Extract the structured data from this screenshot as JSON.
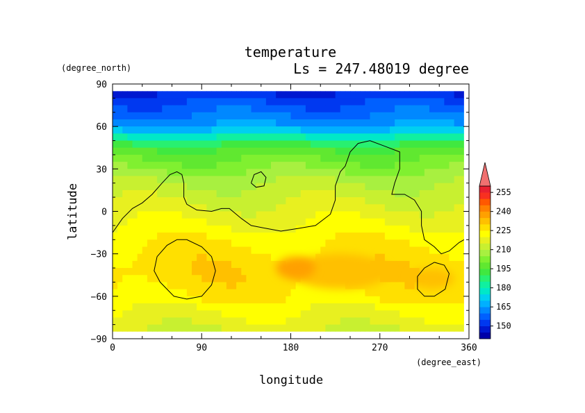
{
  "chart_data": {
    "type": "heatmap",
    "title": "temperature",
    "subtitle": "Ls = 247.48019 degree",
    "xlabel": "longitude",
    "ylabel": "latitude",
    "x_units": "(degree_east)",
    "y_units": "(degree_north)",
    "xlim": [
      0,
      360
    ],
    "ylim": [
      -90,
      90
    ],
    "data_extent": {
      "lon": [
        0,
        355
      ],
      "lat": [
        -85,
        85
      ]
    },
    "x_ticks": [
      0,
      90,
      180,
      270,
      360
    ],
    "y_ticks": [
      90,
      60,
      30,
      0,
      -30,
      -60,
      -90
    ],
    "x_tick_labels": [
      "0",
      "90",
      "180",
      "270",
      "360"
    ],
    "y_tick_labels": [
      "90",
      "60",
      "30",
      "0",
      "−30",
      "−60",
      "−90"
    ],
    "colorbar": {
      "levels": [
        140,
        145,
        150,
        155,
        160,
        165,
        170,
        175,
        180,
        185,
        190,
        195,
        200,
        205,
        210,
        215,
        220,
        225,
        230,
        235,
        240,
        245,
        250,
        255,
        260
      ],
      "colors": [
        "#0000a8",
        "#0018d0",
        "#0038f0",
        "#0060ff",
        "#0088ff",
        "#00b0ff",
        "#00d0f0",
        "#00e8c8",
        "#10f0a0",
        "#28f070",
        "#40e840",
        "#60e830",
        "#80f030",
        "#a8f040",
        "#c8f030",
        "#e8f020",
        "#ffff00",
        "#ffe000",
        "#ffc000",
        "#ffa000",
        "#ff8000",
        "#ff5800",
        "#f83020",
        "#e82030"
      ],
      "labels": [
        {
          "value": 150,
          "text": "150"
        },
        {
          "value": 165,
          "text": "165"
        },
        {
          "value": 180,
          "text": "180"
        },
        {
          "value": 195,
          "text": "195"
        },
        {
          "value": 210,
          "text": "210"
        },
        {
          "value": 225,
          "text": "225"
        },
        {
          "value": 240,
          "text": "240"
        },
        {
          "value": 255,
          "text": "255"
        }
      ],
      "extend": "max"
    },
    "warm_zones": [
      {
        "lon": [
          180,
          280
        ],
        "lat": [
          -55,
          -30
        ],
        "level": 232
      },
      {
        "lon": [
          165,
          205
        ],
        "lat": [
          -48,
          -32
        ],
        "level": 238
      },
      {
        "lon": [
          300,
          345
        ],
        "lat": [
          -55,
          -40
        ],
        "level": 233
      }
    ],
    "coastline": [
      [
        [
          0,
          -15
        ],
        [
          10,
          -5
        ],
        [
          20,
          2
        ],
        [
          30,
          6
        ],
        [
          40,
          12
        ],
        [
          50,
          20
        ],
        [
          58,
          26
        ],
        [
          65,
          28
        ],
        [
          70,
          26
        ],
        [
          72,
          20
        ],
        [
          72,
          10
        ],
        [
          75,
          5
        ],
        [
          85,
          1
        ],
        [
          100,
          0
        ],
        [
          110,
          2
        ],
        [
          118,
          2
        ],
        [
          130,
          -5
        ],
        [
          140,
          -10
        ],
        [
          155,
          -12
        ],
        [
          170,
          -14
        ],
        [
          188,
          -12
        ],
        [
          205,
          -10
        ],
        [
          220,
          -2
        ],
        [
          225,
          8
        ],
        [
          225,
          18
        ],
        [
          230,
          28
        ],
        [
          235,
          32
        ],
        [
          240,
          42
        ],
        [
          248,
          48
        ],
        [
          260,
          50
        ],
        [
          275,
          46
        ],
        [
          290,
          42
        ],
        [
          290,
          30
        ],
        [
          285,
          20
        ],
        [
          282,
          12
        ],
        [
          295,
          12
        ],
        [
          305,
          8
        ],
        [
          312,
          0
        ],
        [
          312,
          -10
        ],
        [
          315,
          -20
        ],
        [
          325,
          -25
        ],
        [
          332,
          -30
        ],
        [
          340,
          -28
        ],
        [
          350,
          -22
        ],
        [
          355,
          -20
        ]
      ],
      [
        [
          140,
          20
        ],
        [
          143,
          26
        ],
        [
          150,
          28
        ],
        [
          155,
          24
        ],
        [
          153,
          18
        ],
        [
          145,
          17
        ],
        [
          140,
          20
        ]
      ],
      [
        [
          65,
          -20
        ],
        [
          75,
          -20
        ],
        [
          90,
          -25
        ],
        [
          100,
          -32
        ],
        [
          104,
          -42
        ],
        [
          100,
          -52
        ],
        [
          90,
          -60
        ],
        [
          75,
          -62
        ],
        [
          62,
          -60
        ],
        [
          48,
          -50
        ],
        [
          42,
          -42
        ],
        [
          45,
          -32
        ],
        [
          55,
          -24
        ],
        [
          65,
          -20
        ]
      ],
      [
        [
          325,
          -36
        ],
        [
          335,
          -38
        ],
        [
          340,
          -44
        ],
        [
          336,
          -55
        ],
        [
          325,
          -60
        ],
        [
          315,
          -60
        ],
        [
          308,
          -55
        ],
        [
          308,
          -46
        ],
        [
          315,
          -40
        ],
        [
          325,
          -36
        ]
      ]
    ]
  }
}
